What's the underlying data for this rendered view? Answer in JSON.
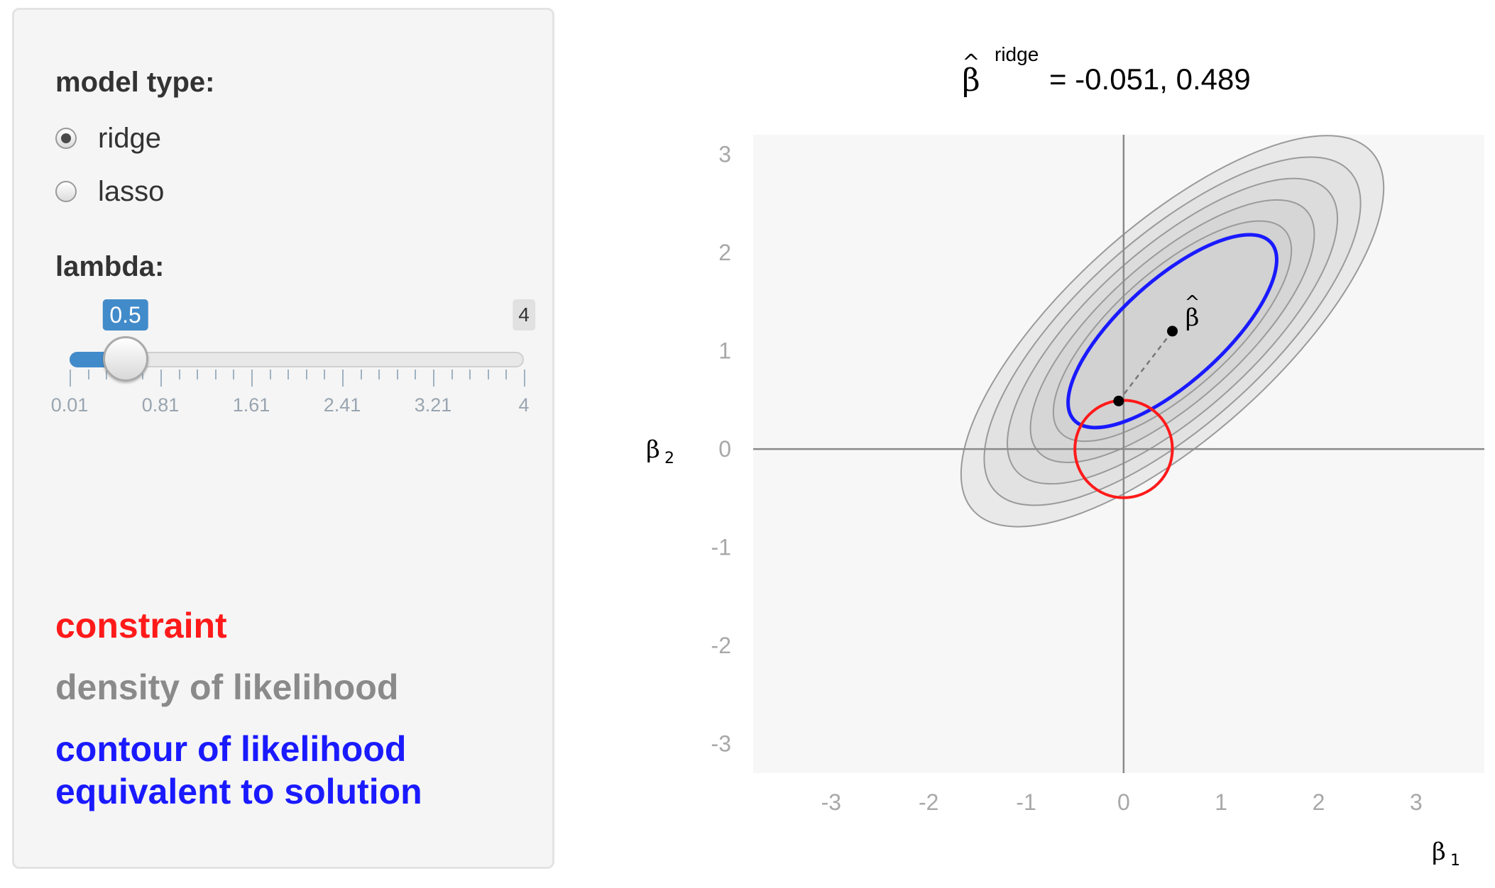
{
  "sidebar": {
    "model_type_label": "model type:",
    "radios": [
      {
        "label": "ridge",
        "selected": true
      },
      {
        "label": "lasso",
        "selected": false
      }
    ],
    "lambda_label": "lambda:",
    "slider": {
      "min": 0.01,
      "max": 4,
      "value": 0.5,
      "value_label": "0.5",
      "max_label": "4",
      "tick_labels": [
        "0.01",
        "0.81",
        "1.61",
        "2.41",
        "3.21",
        "4"
      ],
      "accent_color": "#428bca"
    },
    "legend": [
      {
        "text": "constraint",
        "color": "#ff1a1a"
      },
      {
        "text": "density of likelihood",
        "color": "#8a8a8a"
      },
      {
        "text": "contour of likelihood",
        "color": "#1a1aff"
      },
      {
        "text": "equivalent to solution",
        "color": "#1a1aff"
      }
    ]
  },
  "chart_data": {
    "type": "scatter",
    "title_hat": "^",
    "title_symbol": "β",
    "title_superscript": "ridge",
    "title_value": "= -0.051, 0.489",
    "xlabel": "β",
    "xlabel_sub": "1",
    "ylabel": "β",
    "ylabel_sub": "2",
    "xlim": [
      -3.8,
      3.7
    ],
    "ylim": [
      -3.3,
      3.2
    ],
    "x_ticks": [
      "-3",
      "-2",
      "-1",
      "0",
      "1",
      "2",
      "3"
    ],
    "y_ticks": [
      "3",
      "2",
      "1",
      "0",
      "-1",
      "-2",
      "-3"
    ],
    "ols_estimate": {
      "x": 0.5,
      "y": 1.2,
      "label_hat": "^",
      "label": "β"
    },
    "ridge_estimate": {
      "x": -0.051,
      "y": 0.489
    },
    "constraint_circle": {
      "cx": 0,
      "cy": 0,
      "r": 0.5,
      "color": "#ff1a1a"
    },
    "solution_contour": {
      "cx": 0.5,
      "cy": 1.2,
      "rx": 1.36,
      "ry": 0.52,
      "angle": 42,
      "color": "#1a1aff"
    },
    "density_contours": [
      {
        "rx": 2.75,
        "ry": 1.07,
        "fill": "#e9e9e9"
      },
      {
        "rx": 2.45,
        "ry": 0.95,
        "fill": "#e2e2e2"
      },
      {
        "rx": 2.15,
        "ry": 0.83,
        "fill": "#dcdcdc"
      },
      {
        "rx": 1.85,
        "ry": 0.71,
        "fill": "#d6d6d6"
      },
      {
        "rx": 1.55,
        "ry": 0.6,
        "fill": "#d2d2d2"
      }
    ],
    "grid": false,
    "background": "#f7f7f7"
  }
}
